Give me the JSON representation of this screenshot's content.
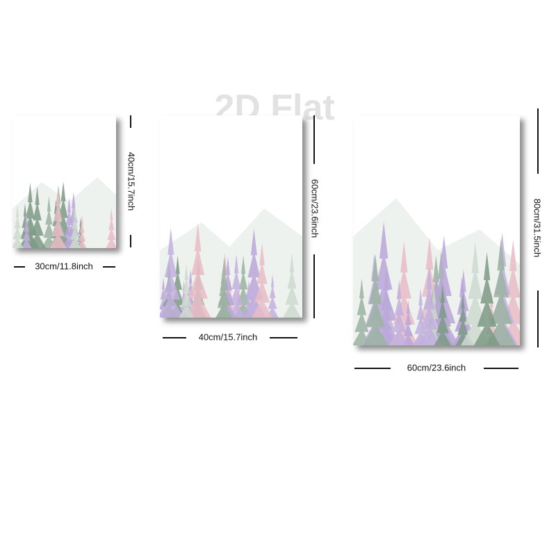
{
  "watermark": "2D Flat",
  "posters": [
    {
      "width_label": "30cm/11.8inch",
      "height_label": "40cm/15.7inch"
    },
    {
      "width_label": "40cm/15.7inch",
      "height_label": "60cm/23.6inch"
    },
    {
      "width_label": "60cm/23.6inch",
      "height_label": "80cm/31.5inch"
    }
  ]
}
